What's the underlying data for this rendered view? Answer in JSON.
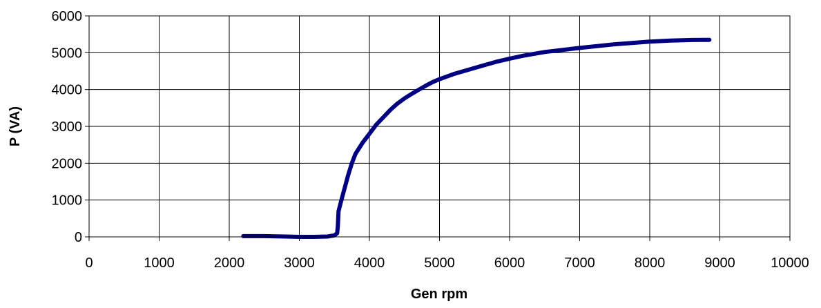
{
  "chart_data": {
    "type": "line",
    "xlabel": "Gen rpm",
    "ylabel": "P (VA)",
    "xlim": [
      0,
      10000
    ],
    "ylim": [
      0,
      6000
    ],
    "x_ticks": [
      0,
      1000,
      2000,
      3000,
      4000,
      5000,
      6000,
      7000,
      8000,
      9000,
      10000
    ],
    "y_ticks": [
      0,
      1000,
      2000,
      3000,
      4000,
      5000,
      6000
    ],
    "grid": true,
    "legend": "none",
    "series": [
      {
        "color": "#000080",
        "x": [
          2200,
          2500,
          2800,
          3000,
          3200,
          3400,
          3500,
          3540,
          3550,
          3555,
          3560,
          3600,
          3650,
          3700,
          3750,
          3800,
          3900,
          4000,
          4100,
          4200,
          4300,
          4400,
          4500,
          4600,
          4700,
          4800,
          4900,
          5000,
          5200,
          5400,
          5600,
          5800,
          6000,
          6200,
          6500,
          7000,
          7500,
          8000,
          8300,
          8600,
          8850
        ],
        "y": [
          20,
          20,
          10,
          0,
          0,
          10,
          40,
          100,
          300,
          500,
          700,
          1000,
          1350,
          1700,
          2000,
          2250,
          2550,
          2800,
          3050,
          3250,
          3450,
          3620,
          3760,
          3880,
          3990,
          4100,
          4200,
          4280,
          4420,
          4530,
          4640,
          4750,
          4840,
          4920,
          5020,
          5130,
          5230,
          5300,
          5330,
          5345,
          5350
        ]
      }
    ]
  }
}
